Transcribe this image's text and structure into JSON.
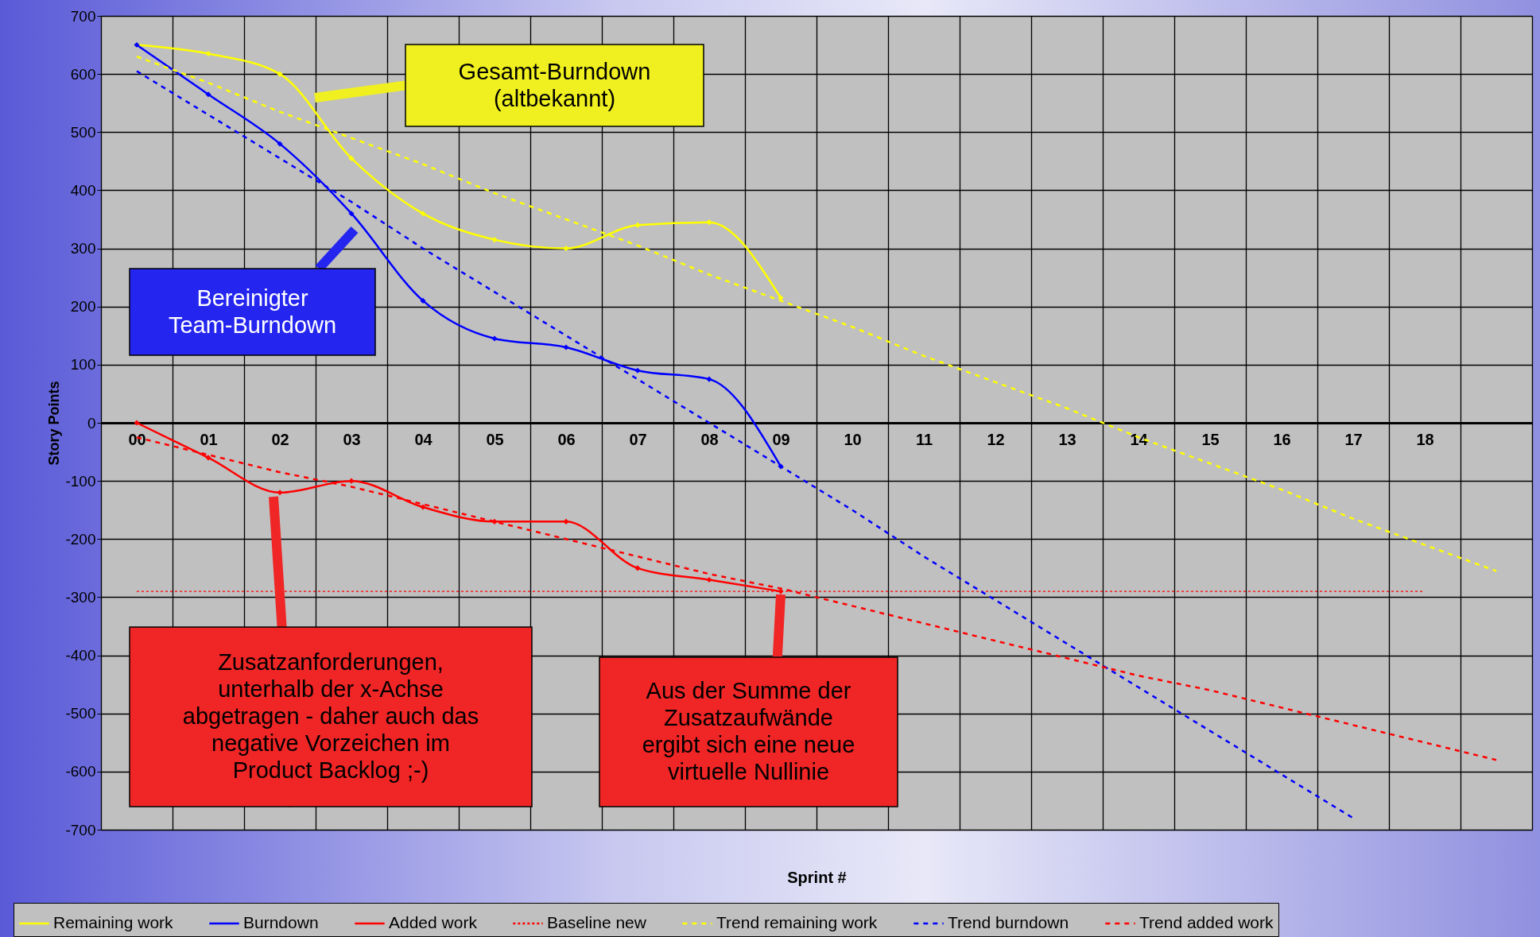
{
  "chart_data": {
    "type": "line",
    "xlabel": "Sprint #",
    "ylabel": "Story Points",
    "categories": [
      "00",
      "01",
      "02",
      "03",
      "04",
      "05",
      "06",
      "07",
      "08",
      "09",
      "10",
      "11",
      "12",
      "13",
      "14",
      "15",
      "16",
      "17",
      "18",
      null
    ],
    "ylim": [
      -700,
      700
    ],
    "yticks": [
      -700,
      -600,
      -500,
      -400,
      -300,
      -200,
      -100,
      0,
      100,
      200,
      300,
      400,
      500,
      600,
      700
    ],
    "grid": true,
    "legend": "bottom",
    "series": [
      {
        "name": "Remaining work",
        "color": "#ffff00",
        "marker": "diamond",
        "line_style": "solid",
        "values": [
          650,
          635,
          600,
          455,
          360,
          315,
          300,
          340,
          345,
          215,
          null,
          null,
          null,
          null,
          null,
          null,
          null,
          null,
          null,
          null
        ]
      },
      {
        "name": "Burndown",
        "color": "#0000ff",
        "marker": "diamond",
        "line_style": "solid",
        "values": [
          650,
          565,
          480,
          360,
          210,
          145,
          130,
          90,
          75,
          -75,
          null,
          null,
          null,
          null,
          null,
          null,
          null,
          null,
          null,
          null
        ]
      },
      {
        "name": "Added work",
        "color": "#ff0000",
        "marker": "diamond",
        "line_style": "solid",
        "values": [
          0,
          -60,
          -120,
          -100,
          -145,
          -170,
          -170,
          -250,
          -270,
          -290,
          null,
          null,
          null,
          null,
          null,
          null,
          null,
          null,
          null,
          null
        ]
      },
      {
        "name": "Baseline new",
        "color": "#ff0000",
        "marker": "none",
        "line_style": "dotted",
        "values": [
          -290,
          -290,
          -290,
          -290,
          -290,
          -290,
          -290,
          -290,
          -290,
          -290,
          -290,
          -290,
          -290,
          -290,
          -290,
          -290,
          -290,
          -290,
          -290,
          null
        ]
      },
      {
        "name": "Trend remaining work",
        "color": "#ffff00",
        "marker": "none",
        "line_style": "dashed",
        "values": [
          630,
          585,
          535,
          490,
          445,
          395,
          350,
          305,
          255,
          210,
          165,
          115,
          70,
          25,
          -25,
          -70,
          -115,
          -165,
          -210,
          -255
        ]
      },
      {
        "name": "Trend burndown",
        "color": "#0000ff",
        "marker": "none",
        "line_style": "dashed",
        "values": [
          605,
          530,
          455,
          380,
          300,
          225,
          150,
          75,
          0,
          -75,
          -150,
          -230,
          -305,
          -380,
          -455,
          -530,
          -605,
          -680,
          null,
          null
        ]
      },
      {
        "name": "Trend added work",
        "color": "#ff0000",
        "marker": "none",
        "line_style": "dashed",
        "values": [
          -25,
          -55,
          -85,
          -110,
          -140,
          -170,
          -200,
          -230,
          -260,
          -285,
          -315,
          -345,
          -375,
          -405,
          -435,
          -460,
          -490,
          -520,
          -550,
          -580
        ]
      }
    ],
    "annotations": [
      "Gesamt-Burndown\n(altbekannt)",
      "Bereinigter\nTeam-Burndown",
      "Zusatzanforderungen,\nunterhalb der x-Achse\nabgetragen - daher auch das\nnegative Vorzeichen im\nProduct Backlog ;-)",
      "Aus der Summe der\nZusatzaufwände\nergibt sich eine neue\nvirtuelle Nullinie"
    ]
  }
}
